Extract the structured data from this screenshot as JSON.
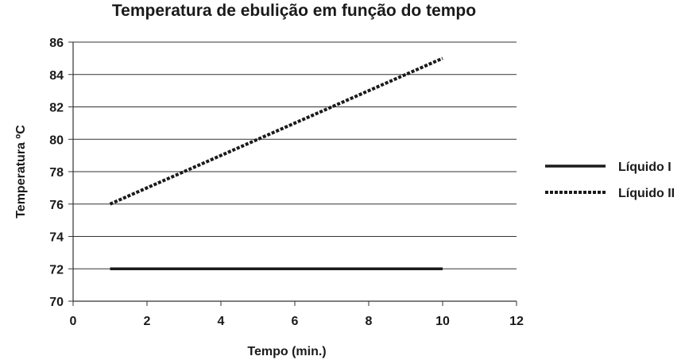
{
  "chart_data": {
    "type": "line",
    "title": "Temperatura de ebulição em função do tempo",
    "xlabel": "Tempo (min.)",
    "ylabel": "Temperatura ºC",
    "xlim": [
      0,
      12
    ],
    "ylim": [
      70,
      86
    ],
    "x_ticks": [
      0,
      2,
      4,
      6,
      8,
      10,
      12
    ],
    "y_ticks": [
      70,
      72,
      74,
      76,
      78,
      80,
      82,
      84,
      86
    ],
    "grid": "horizontal",
    "legend_position": "right",
    "series": [
      {
        "name": "Líquido I",
        "style": "solid",
        "color": "#1a1a1a",
        "x": [
          1,
          10
        ],
        "y": [
          72,
          72
        ]
      },
      {
        "name": "Líquido II",
        "style": "dotted",
        "color": "#1a1a1a",
        "x": [
          1,
          10
        ],
        "y": [
          76,
          85
        ]
      }
    ]
  }
}
